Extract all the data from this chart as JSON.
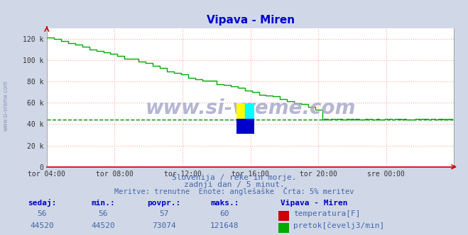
{
  "title": "Vipava - Miren",
  "title_color": "#0000cc",
  "bg_color": "#d0d8e8",
  "plot_bg_color": "#ffffff",
  "grid_color": "#ffaaaa",
  "grid_style": "dotted",
  "xlabel_ticks": [
    "tor 04:00",
    "tor 08:00",
    "tor 12:00",
    "tor 16:00",
    "tor 20:00",
    "sre 00:00"
  ],
  "ylabel_ticks": [
    "0",
    "20 k",
    "40 k",
    "60 k",
    "80 k",
    "100 k",
    "120 k"
  ],
  "ylabel_values": [
    0,
    20000,
    40000,
    60000,
    80000,
    100000,
    120000
  ],
  "ylim": [
    0,
    130000
  ],
  "xlim": [
    0,
    288
  ],
  "flow_color": "#00aa00",
  "temp_color": "#cc0000",
  "avg_line_color": "#008800",
  "avg_value": 44520,
  "watermark_text": "www.si-vreme.com",
  "watermark_color": "#aaaacc",
  "subtitle1": "Slovenija / reke in morje.",
  "subtitle2": "zadnji dan / 5 minut.",
  "subtitle3": "Meritve: trenutne  Enote: anglešaške  Črta: 5% meritev",
  "subtitle_color": "#4466aa",
  "table_headers": [
    "sedaj:",
    "min.:",
    "povpr.:",
    "maks.:"
  ],
  "table_header_color": "#0000cc",
  "table_values_temp": [
    56,
    56,
    57,
    60
  ],
  "table_values_flow": [
    44520,
    44520,
    73074,
    121648
  ],
  "table_value_color": "#4466aa",
  "legend_title": "Vipava - Miren",
  "legend_temp_label": "temperatura[F]",
  "legend_flow_label": "pretok[čevelj3/min]",
  "n_points": 288
}
